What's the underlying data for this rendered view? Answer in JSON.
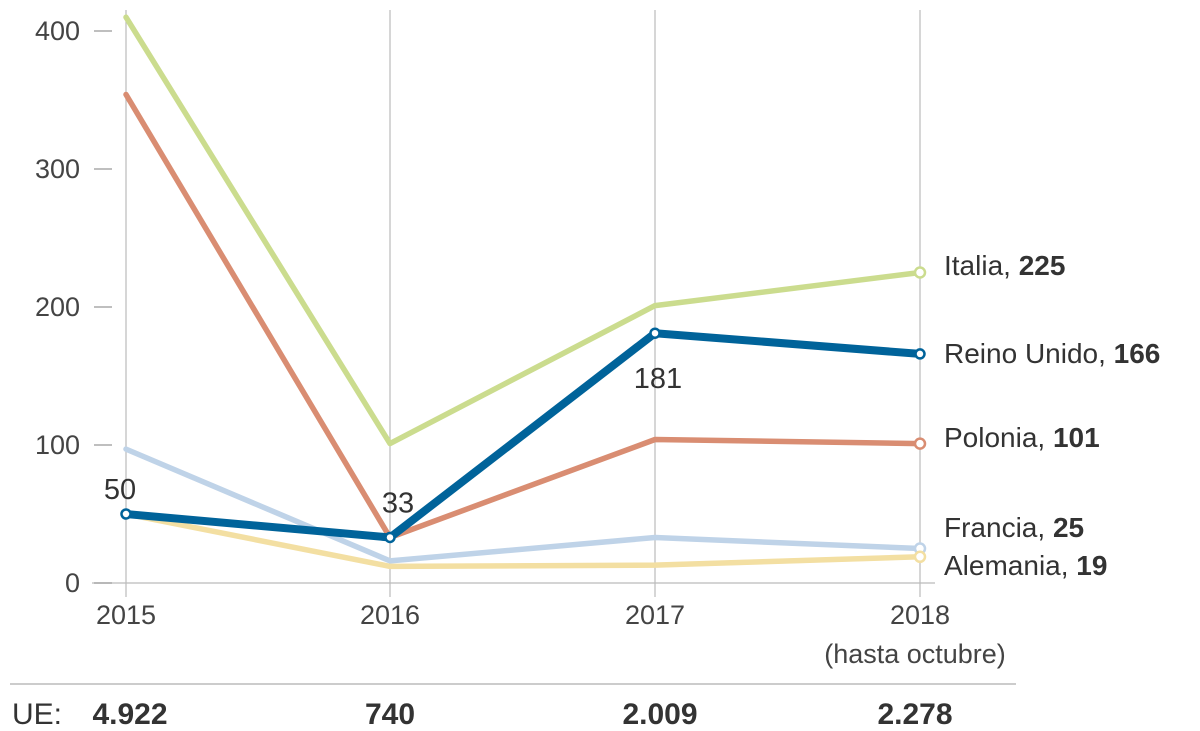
{
  "chart_data": {
    "type": "line",
    "categories": [
      "2015",
      "2016",
      "2017",
      "2018"
    ],
    "category_note": "(hasta octubre)",
    "ylim": [
      0,
      400
    ],
    "yticks": [
      0,
      100,
      200,
      300,
      400
    ],
    "series": [
      {
        "name": "Italia",
        "values": [
          410,
          101,
          201,
          225
        ],
        "end_label": "225",
        "color": "#cbdc8e",
        "width": "normal"
      },
      {
        "name": "Polonia",
        "values": [
          354,
          33,
          104,
          101
        ],
        "end_label": "101",
        "color": "#d98d72",
        "width": "normal"
      },
      {
        "name": "Francia",
        "values": [
          97,
          16,
          33,
          25
        ],
        "end_label": "25",
        "color": "#bfd3e8",
        "width": "normal"
      },
      {
        "name": "Alemania",
        "values": [
          50,
          12,
          13,
          19
        ],
        "end_label": "19",
        "color": "#f3dfa2",
        "width": "normal"
      },
      {
        "name": "Reino Unido",
        "values": [
          50,
          33,
          181,
          166
        ],
        "end_label": "166",
        "color": "#00639a",
        "width": "bold"
      }
    ],
    "data_labels": [
      {
        "series": "Reino Unido",
        "index": 0,
        "text": "50"
      },
      {
        "series": "Reino Unido",
        "index": 1,
        "text": "33"
      },
      {
        "series": "Reino Unido",
        "index": 2,
        "text": "181"
      }
    ],
    "footer": {
      "label": "UE:",
      "values": [
        "4.922",
        "740",
        "2.009",
        "2.278"
      ]
    }
  }
}
